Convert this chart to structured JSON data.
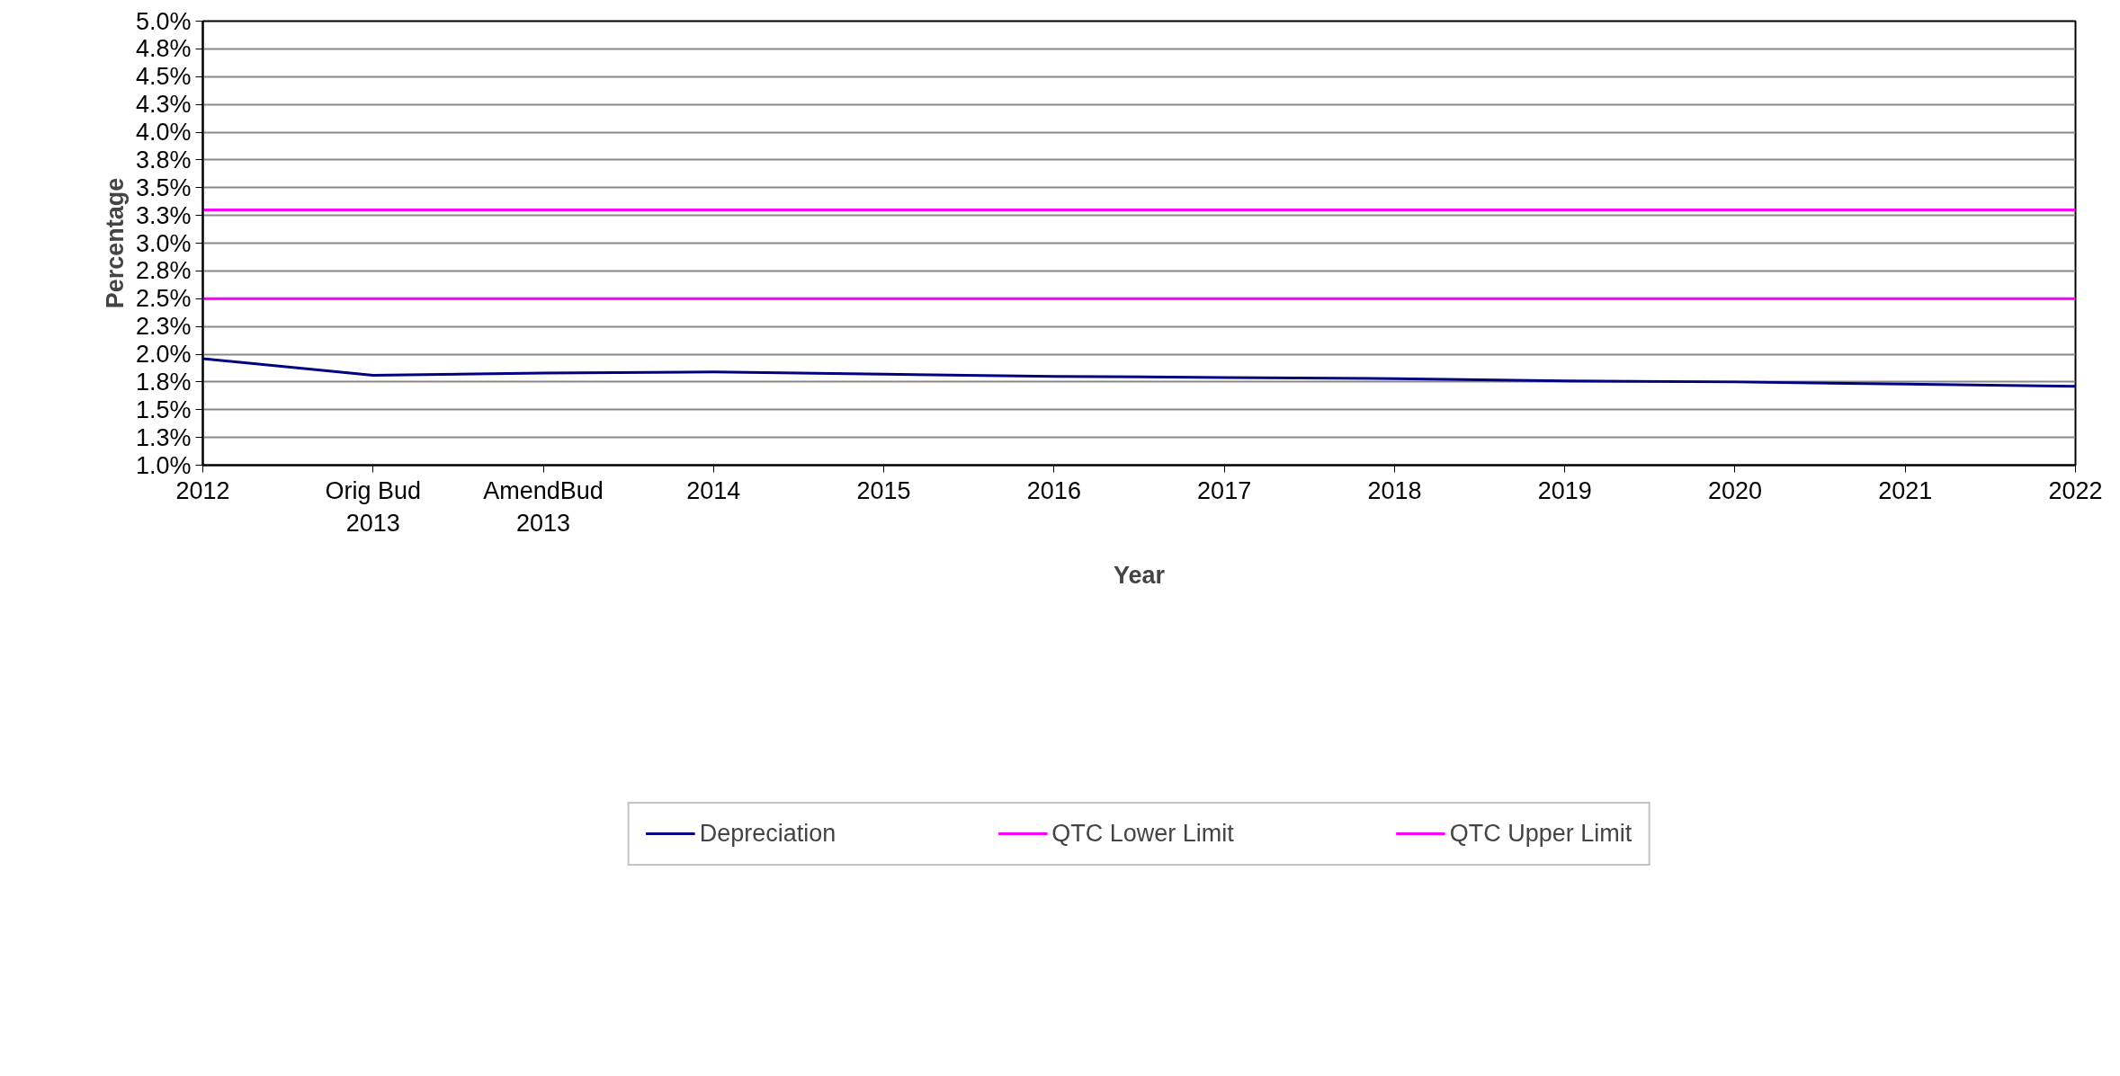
{
  "chart_data": {
    "type": "line",
    "xlabel": "Year",
    "ylabel": "Percentage",
    "categories": [
      "2012",
      "Orig Bud\n2013",
      "AmendBud\n2013",
      "2014",
      "2015",
      "2016",
      "2017",
      "2018",
      "2019",
      "2020",
      "2021",
      "2022"
    ],
    "series": [
      {
        "name": "Depreciation",
        "color": "#000080",
        "values": [
          1.96,
          1.81,
          1.83,
          1.84,
          1.82,
          1.8,
          1.79,
          1.78,
          1.76,
          1.75,
          1.73,
          1.71
        ]
      },
      {
        "name": "QTC Lower Limit",
        "color": "#ff00ff",
        "values": [
          2.5,
          2.5,
          2.5,
          2.5,
          2.5,
          2.5,
          2.5,
          2.5,
          2.5,
          2.5,
          2.5,
          2.5
        ]
      },
      {
        "name": "QTC Upper Limit",
        "color": "#ff00ff",
        "values": [
          3.3,
          3.3,
          3.3,
          3.3,
          3.3,
          3.3,
          3.3,
          3.3,
          3.3,
          3.3,
          3.3,
          3.3
        ]
      }
    ],
    "ylim": [
      1.0,
      5.0
    ],
    "yticks": [
      {
        "value": 1.0,
        "label": "1.0%"
      },
      {
        "value": 1.25,
        "label": "1.3%"
      },
      {
        "value": 1.5,
        "label": "1.5%"
      },
      {
        "value": 1.75,
        "label": "1.8%"
      },
      {
        "value": 2.0,
        "label": "2.0%"
      },
      {
        "value": 2.25,
        "label": "2.3%"
      },
      {
        "value": 2.5,
        "label": "2.5%"
      },
      {
        "value": 2.75,
        "label": "2.8%"
      },
      {
        "value": 3.0,
        "label": "3.0%"
      },
      {
        "value": 3.25,
        "label": "3.3%"
      },
      {
        "value": 3.5,
        "label": "3.5%"
      },
      {
        "value": 3.75,
        "label": "3.8%"
      },
      {
        "value": 4.0,
        "label": "4.0%"
      },
      {
        "value": 4.25,
        "label": "4.3%"
      },
      {
        "value": 4.5,
        "label": "4.5%"
      },
      {
        "value": 4.75,
        "label": "4.8%"
      },
      {
        "value": 5.0,
        "label": "5.0%"
      }
    ],
    "grid": "y",
    "legend": "bottom",
    "marker": "none",
    "line_style": "solid"
  }
}
